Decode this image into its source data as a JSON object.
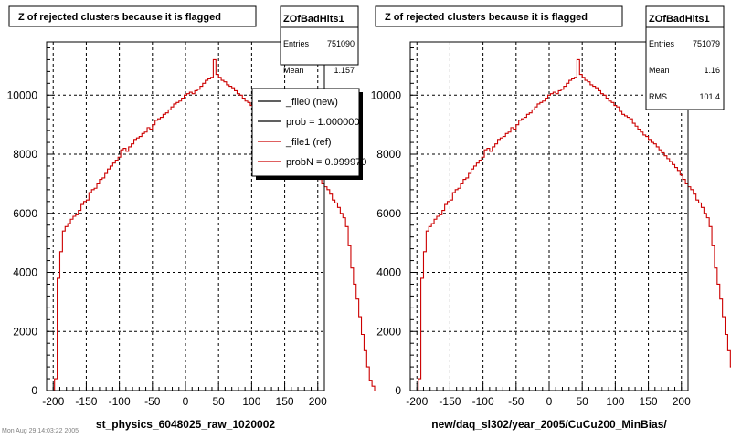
{
  "canvas": {
    "background": "#ffffff",
    "frame_color": "#000000",
    "grid_color": "#000000",
    "ref_color": "#cc0000",
    "new_color": "#000000"
  },
  "footer_text": "Mon Aug 29 14:03:22 2005",
  "chart_data": [
    {
      "type": "histogram",
      "title": "Z of rejected clusters  because it is flagged",
      "xlabel": "st_physics_6048025_raw_1020002",
      "ylabel": "",
      "xlim": [
        -210,
        210
      ],
      "ylim": [
        0,
        11800
      ],
      "xticks": [
        -200,
        -150,
        -100,
        -50,
        0,
        50,
        100,
        150,
        200
      ],
      "yticks": [
        0,
        2000,
        4000,
        6000,
        8000,
        10000
      ],
      "grid": true,
      "stats": {
        "name": "ZOfBadHits1",
        "rows": [
          {
            "label": "Entries",
            "value": "751090"
          },
          {
            "label": "Mean",
            "value": "1.157"
          }
        ]
      },
      "legend": {
        "placement": "top-right",
        "entries": [
          {
            "label": "_file0 (new)",
            "color": "#000000"
          },
          {
            "label": "prob = 1.000000",
            "color": "#000000"
          },
          {
            "label": "_file1 (ref)",
            "color": "#cc0000"
          },
          {
            "label": "probN = 0.999970",
            "color": "#cc0000"
          }
        ]
      },
      "bin_width": 4,
      "x_start": -198,
      "values": [
        400,
        3800,
        4700,
        5400,
        5550,
        5650,
        5800,
        5900,
        5950,
        6100,
        6300,
        6400,
        6450,
        6700,
        6800,
        6850,
        7000,
        7150,
        7200,
        7350,
        7500,
        7600,
        7700,
        7800,
        7900,
        8150,
        8200,
        8100,
        8250,
        8350,
        8500,
        8550,
        8600,
        8700,
        8750,
        8900,
        8850,
        9000,
        9150,
        9200,
        9250,
        9350,
        9400,
        9500,
        9600,
        9700,
        9750,
        9800,
        9900,
        10000,
        10050,
        10100,
        10050,
        10150,
        10200,
        10300,
        10400,
        10500,
        10550,
        10600,
        11200,
        10700,
        10600,
        10500,
        10450,
        10350,
        10300,
        10250,
        10150,
        10050,
        10000,
        9900,
        9800,
        9750,
        9650,
        9600,
        9450,
        9350,
        9300,
        9250,
        9200,
        9050,
        8950,
        8850,
        8750,
        8650,
        8600,
        8500,
        8400,
        8350,
        8250,
        8150,
        8050,
        7950,
        7850,
        7750,
        7650,
        7550,
        7450,
        7300,
        7150,
        7000,
        6900,
        6800,
        6650,
        6450,
        6350,
        6200,
        6000,
        5850,
        5550,
        4900,
        4150,
        3600,
        3100,
        2500,
        1900,
        1350,
        800,
        350,
        150
      ]
    },
    {
      "type": "histogram",
      "title": "Z of rejected clusters  because it is flagged",
      "xlabel": "new/daq_sl302/year_2005/CuCu200_MinBias/",
      "ylabel": "",
      "xlim": [
        -210,
        210
      ],
      "ylim": [
        0,
        11800
      ],
      "xticks": [
        -200,
        -150,
        -100,
        -50,
        0,
        50,
        100,
        150,
        200
      ],
      "yticks": [
        0,
        2000,
        4000,
        6000,
        8000,
        10000
      ],
      "grid": true,
      "stats": {
        "name": "ZOfBadHits1",
        "rows": [
          {
            "label": "Entries",
            "value": "751079"
          },
          {
            "label": "Mean",
            "value": "1.16"
          },
          {
            "label": "RMS",
            "value": "101.4"
          }
        ]
      },
      "bin_width": 4,
      "x_start": -198,
      "values": [
        400,
        3800,
        4700,
        5400,
        5550,
        5650,
        5800,
        5900,
        5950,
        6100,
        6300,
        6400,
        6450,
        6700,
        6800,
        6850,
        7000,
        7150,
        7200,
        7350,
        7500,
        7600,
        7700,
        7800,
        7900,
        8150,
        8200,
        8100,
        8250,
        8350,
        8500,
        8550,
        8600,
        8700,
        8750,
        8900,
        8850,
        9000,
        9150,
        9200,
        9250,
        9350,
        9400,
        9500,
        9600,
        9700,
        9750,
        9800,
        9900,
        10000,
        10050,
        10100,
        10050,
        10150,
        10200,
        10300,
        10400,
        10500,
        10550,
        10600,
        11200,
        10700,
        10600,
        10500,
        10450,
        10350,
        10300,
        10250,
        10150,
        10050,
        10000,
        9900,
        9800,
        9750,
        9650,
        9600,
        9450,
        9350,
        9300,
        9250,
        9200,
        9050,
        8950,
        8850,
        8750,
        8650,
        8600,
        8500,
        8400,
        8350,
        8250,
        8150,
        8050,
        7950,
        7850,
        7750,
        7650,
        7550,
        7450,
        7300,
        7150,
        7000,
        6900,
        6800,
        6650,
        6450,
        6350,
        6200,
        6000,
        5850,
        5550,
        4900,
        4150,
        3600,
        3100,
        2500,
        1900,
        1350,
        800,
        350,
        150
      ]
    }
  ]
}
